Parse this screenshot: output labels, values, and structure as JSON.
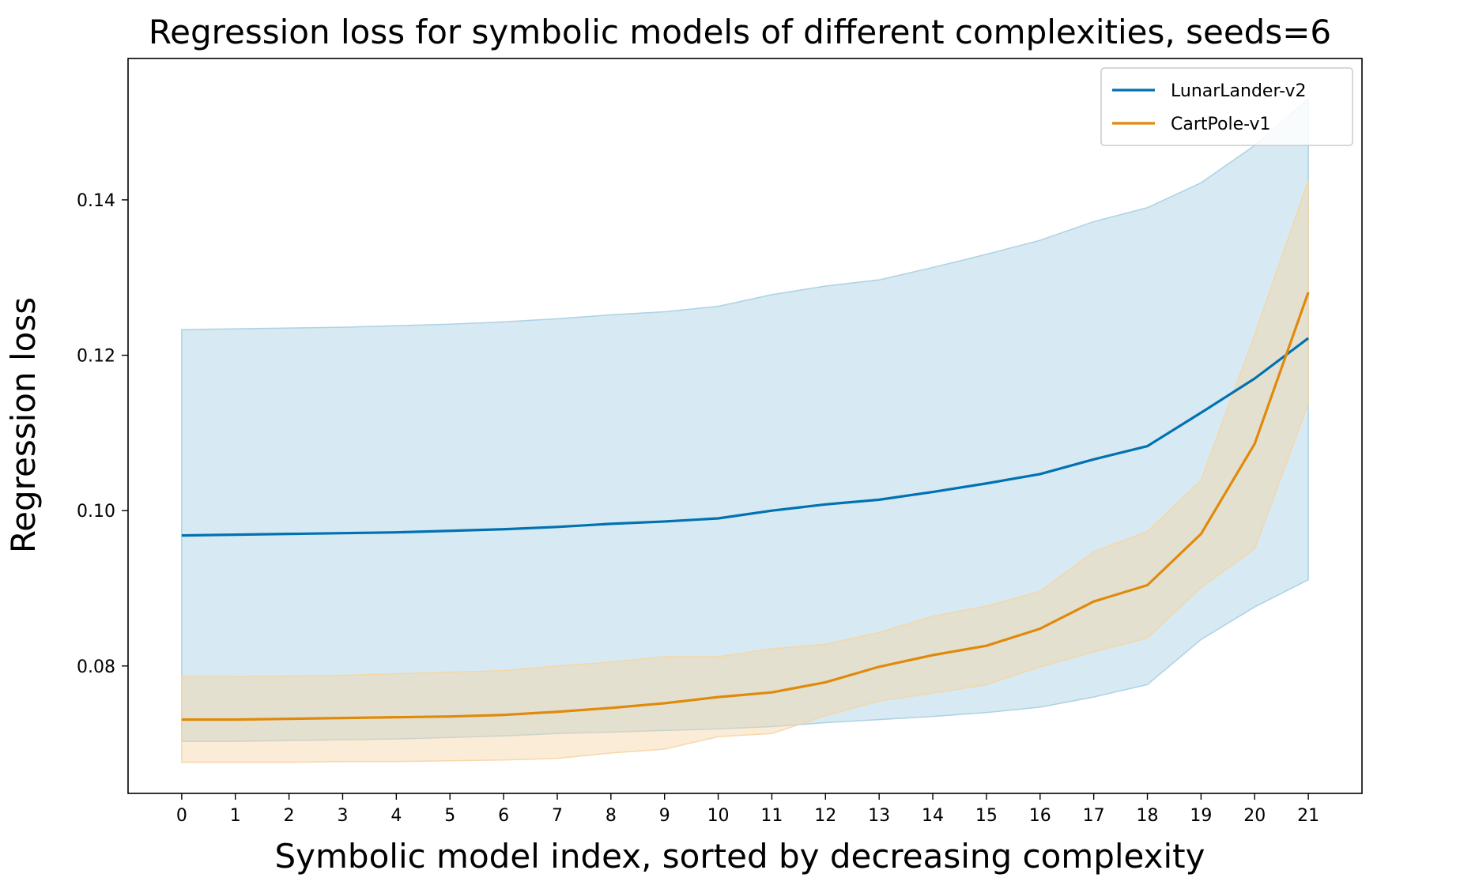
{
  "chart_data": {
    "type": "line",
    "title": "Regression loss for symbolic models of different complexities, seeds=6",
    "xlabel": "Symbolic model index, sorted by decreasing complexity",
    "ylabel": "Regression loss",
    "x": [
      0,
      1,
      2,
      3,
      4,
      5,
      6,
      7,
      8,
      9,
      10,
      11,
      12,
      13,
      14,
      15,
      16,
      17,
      18,
      19,
      20,
      21
    ],
    "x_tick_labels": [
      "0",
      "1",
      "2",
      "3",
      "4",
      "5",
      "6",
      "7",
      "8",
      "9",
      "10",
      "11",
      "12",
      "13",
      "14",
      "15",
      "16",
      "17",
      "18",
      "19",
      "20",
      "21"
    ],
    "xlim": [
      -1.0,
      22.0
    ],
    "ylim": [
      0.0636,
      0.1582
    ],
    "y_ticks": [
      0.08,
      0.1,
      0.12,
      0.14
    ],
    "y_tick_labels": [
      "0.08",
      "0.10",
      "0.12",
      "0.14"
    ],
    "grid": false,
    "legend_position": "top-right",
    "series": [
      {
        "name": "LunarLander-v2",
        "color": "#0072b2",
        "band_color": "#a6cee3",
        "values": [
          0.0968,
          0.0969,
          0.097,
          0.0971,
          0.0972,
          0.0974,
          0.0976,
          0.0979,
          0.0983,
          0.0986,
          0.099,
          0.1,
          0.1008,
          0.1014,
          0.1024,
          0.1035,
          0.1047,
          0.1066,
          0.1083,
          0.1126,
          0.117,
          0.1222
        ],
        "lower": [
          0.0703,
          0.0703,
          0.0704,
          0.0705,
          0.0706,
          0.0708,
          0.071,
          0.0713,
          0.0715,
          0.0717,
          0.0719,
          0.0722,
          0.0727,
          0.0731,
          0.0735,
          0.074,
          0.0747,
          0.076,
          0.0776,
          0.0834,
          0.0876,
          0.0911
        ],
        "upper": [
          0.1233,
          0.1234,
          0.1235,
          0.1236,
          0.1238,
          0.124,
          0.1243,
          0.1247,
          0.1252,
          0.1256,
          0.1263,
          0.1278,
          0.1289,
          0.1297,
          0.1313,
          0.133,
          0.1348,
          0.1372,
          0.139,
          0.1422,
          0.147,
          0.153
        ]
      },
      {
        "name": "CartPole-v1",
        "color": "#e08a0b",
        "band_color": "#f5d5a3",
        "values": [
          0.0731,
          0.0731,
          0.0732,
          0.0733,
          0.0734,
          0.0735,
          0.0737,
          0.0741,
          0.0746,
          0.0752,
          0.076,
          0.0766,
          0.0779,
          0.0799,
          0.0814,
          0.0826,
          0.0848,
          0.0883,
          0.0904,
          0.097,
          0.1086,
          0.1281
        ],
        "lower": [
          0.0676,
          0.0676,
          0.0676,
          0.0677,
          0.0677,
          0.0678,
          0.0679,
          0.0681,
          0.0688,
          0.0693,
          0.0709,
          0.0713,
          0.0736,
          0.0755,
          0.0765,
          0.0776,
          0.0799,
          0.0818,
          0.0836,
          0.0901,
          0.0951,
          0.1138
        ],
        "upper": [
          0.0786,
          0.0786,
          0.0787,
          0.0788,
          0.079,
          0.0792,
          0.0794,
          0.08,
          0.0805,
          0.0812,
          0.0812,
          0.0822,
          0.0828,
          0.0843,
          0.0864,
          0.0877,
          0.0896,
          0.0947,
          0.0973,
          0.1039,
          0.1226,
          0.1425
        ]
      }
    ]
  }
}
